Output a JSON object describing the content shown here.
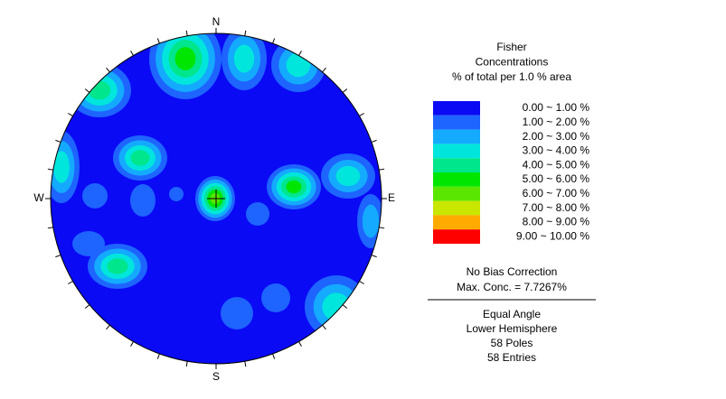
{
  "chart_data": {
    "type": "stereonet",
    "compass": {
      "north": "N",
      "east": "E",
      "south": "S",
      "west": "W"
    },
    "legend_title": [
      "Fisher",
      "Concentrations",
      "% of total per 1.0 % area"
    ],
    "legend": [
      {
        "label": "0.00 ~ 1.00 %",
        "color": "#0a0af5"
      },
      {
        "label": "1.00 ~ 2.00 %",
        "color": "#1e64ff"
      },
      {
        "label": "2.00 ~ 3.00 %",
        "color": "#14aaff"
      },
      {
        "label": "3.00 ~ 4.00 %",
        "color": "#00e6dc"
      },
      {
        "label": "4.00 ~ 5.00 %",
        "color": "#00e68c"
      },
      {
        "label": "5.00 ~ 6.00 %",
        "color": "#00e600"
      },
      {
        "label": "6.00 ~ 7.00 %",
        "color": "#5ae600"
      },
      {
        "label": "7.00 ~ 8.00 %",
        "color": "#c8e600"
      },
      {
        "label": "8.00 ~ 9.00 %",
        "color": "#ffaa00"
      },
      {
        "label": "9.00 ~ 10.00 %",
        "color": "#ff0000"
      }
    ],
    "notes_top": [
      "No Bias Correction",
      "Max. Conc. = 7.7267%"
    ],
    "notes_bottom": [
      "Equal Angle",
      "Lower Hemisphere",
      "58 Poles",
      "58 Entries"
    ]
  }
}
